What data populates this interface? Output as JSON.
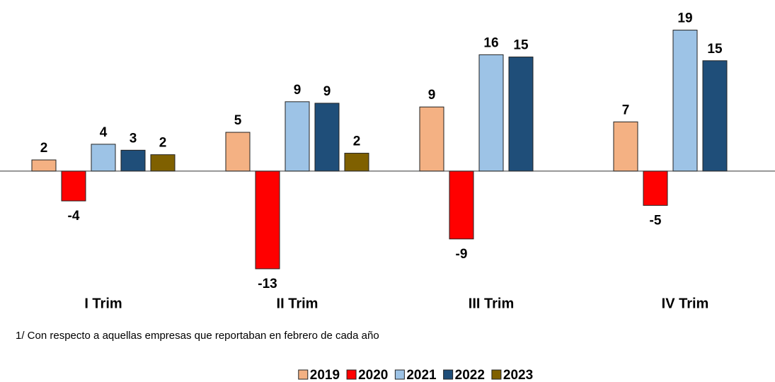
{
  "chart_data": {
    "type": "bar",
    "categories": [
      "I Trim",
      "II Trim",
      "III Trim",
      "IV Trim"
    ],
    "series": [
      {
        "name": "2019",
        "color": "#f4b183",
        "values": [
          1.5,
          5.2,
          8.6,
          6.6
        ],
        "value_labels": [
          "2",
          "5",
          "9",
          "7"
        ]
      },
      {
        "name": "2020",
        "color": "#ff0000",
        "values": [
          -4.0,
          -13.1,
          -9.1,
          -4.6
        ],
        "value_labels": [
          "-4",
          "-13",
          "-9",
          "-5"
        ]
      },
      {
        "name": "2021",
        "color": "#9dc3e6",
        "values": [
          3.6,
          9.3,
          15.6,
          18.9
        ],
        "value_labels": [
          "4",
          "9",
          "16",
          "19"
        ]
      },
      {
        "name": "2022",
        "color": "#1f4e79",
        "values": [
          2.8,
          9.1,
          15.3,
          14.8
        ],
        "value_labels": [
          "3",
          "9",
          "15",
          "15"
        ]
      },
      {
        "name": "2023",
        "color": "#7f6000",
        "values": [
          2.2,
          2.4,
          null,
          null
        ],
        "value_labels": [
          "2",
          "2",
          null,
          null
        ]
      }
    ],
    "ylim": [
      -15,
      20
    ],
    "footnote": "1/ Con respecto a aquellas empresas que reportaban en febrero de cada año",
    "legend": "bottom"
  }
}
